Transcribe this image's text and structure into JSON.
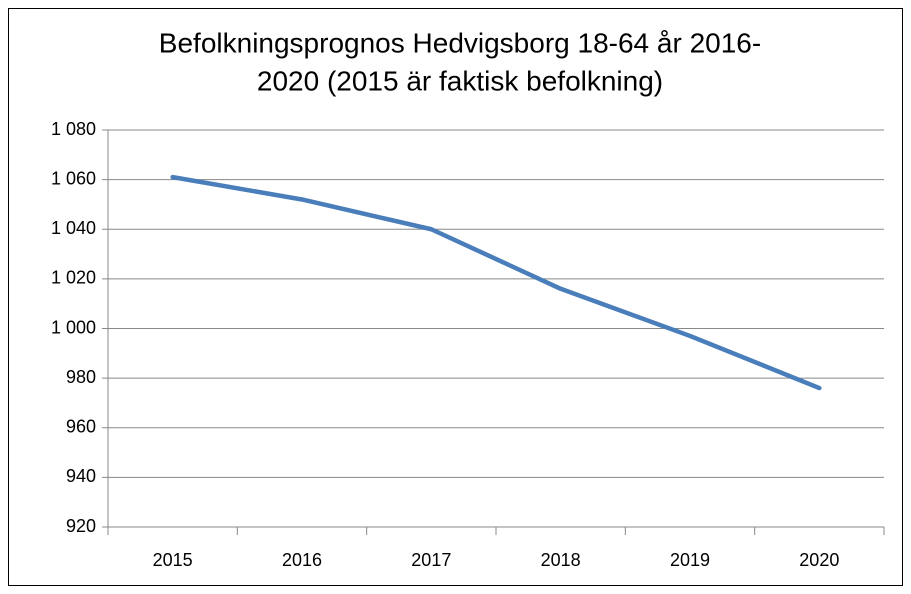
{
  "chart_data": {
    "type": "line",
    "title": [
      "Befolkningsprognos Hedvigsborg 18-64 år 2016-",
      "2020 (2015 är faktisk befolkning)"
    ],
    "categories": [
      "2015",
      "2016",
      "2017",
      "2018",
      "2019",
      "2020"
    ],
    "values": [
      1061,
      1052,
      1040,
      1016,
      997,
      976
    ],
    "color": "#4a7ebb",
    "ylim": [
      920,
      1080
    ],
    "yticks": [
      920,
      940,
      960,
      980,
      {
        "value": 1000,
        "label": "1 000"
      },
      {
        "value": 1020,
        "label": "1 020"
      },
      {
        "value": 1040,
        "label": "1 040"
      },
      {
        "value": 1060,
        "label": "1 060"
      },
      {
        "value": 1080,
        "label": "1 080"
      }
    ],
    "grid": true
  }
}
